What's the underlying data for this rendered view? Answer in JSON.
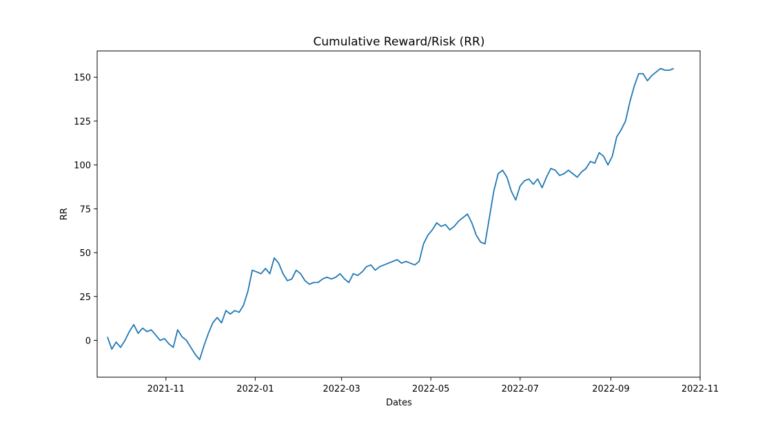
{
  "chart_data": {
    "type": "line",
    "title": "Cumulative Reward/Risk (RR)",
    "xlabel": "Dates",
    "ylabel": "RR",
    "x_ticks": [
      "2021-11",
      "2022-01",
      "2022-03",
      "2022-05",
      "2022-07",
      "2022-09",
      "2022-11"
    ],
    "y_ticks": [
      0,
      25,
      50,
      75,
      100,
      125,
      150
    ],
    "xlim": [
      "2021-09-15",
      "2022-11-01"
    ],
    "ylim": [
      -21,
      165
    ],
    "grid": false,
    "line_color": "#1f77b4",
    "series": [
      {
        "x": [
          "2021-09-22",
          "2021-09-25",
          "2021-09-28",
          "2021-10-01",
          "2021-10-04",
          "2021-10-07",
          "2021-10-10",
          "2021-10-13",
          "2021-10-16",
          "2021-10-19",
          "2021-10-22",
          "2021-10-25",
          "2021-10-28",
          "2021-10-31",
          "2021-11-03",
          "2021-11-06",
          "2021-11-09",
          "2021-11-12",
          "2021-11-15",
          "2021-11-18",
          "2021-11-21",
          "2021-11-24",
          "2021-11-27",
          "2021-11-30",
          "2021-12-03",
          "2021-12-06",
          "2021-12-09",
          "2021-12-12",
          "2021-12-15",
          "2021-12-18",
          "2021-12-21",
          "2021-12-24",
          "2021-12-27",
          "2021-12-30",
          "2022-01-02",
          "2022-01-05",
          "2022-01-08",
          "2022-01-11",
          "2022-01-14",
          "2022-01-17",
          "2022-01-20",
          "2022-01-23",
          "2022-01-26",
          "2022-01-29",
          "2022-02-01",
          "2022-02-04",
          "2022-02-07",
          "2022-02-10",
          "2022-02-13",
          "2022-02-16",
          "2022-02-19",
          "2022-02-22",
          "2022-02-25",
          "2022-02-28",
          "2022-03-03",
          "2022-03-06",
          "2022-03-09",
          "2022-03-12",
          "2022-03-15",
          "2022-03-18",
          "2022-03-21",
          "2022-03-24",
          "2022-03-27",
          "2022-03-30",
          "2022-04-02",
          "2022-04-05",
          "2022-04-08",
          "2022-04-11",
          "2022-04-14",
          "2022-04-17",
          "2022-04-20",
          "2022-04-23",
          "2022-04-26",
          "2022-04-29",
          "2022-05-02",
          "2022-05-05",
          "2022-05-08",
          "2022-05-11",
          "2022-05-14",
          "2022-05-17",
          "2022-05-20",
          "2022-05-23",
          "2022-05-26",
          "2022-05-29",
          "2022-06-01",
          "2022-06-04",
          "2022-06-07",
          "2022-06-10",
          "2022-06-13",
          "2022-06-16",
          "2022-06-19",
          "2022-06-22",
          "2022-06-25",
          "2022-06-28",
          "2022-07-01",
          "2022-07-04",
          "2022-07-07",
          "2022-07-10",
          "2022-07-13",
          "2022-07-16",
          "2022-07-19",
          "2022-07-22",
          "2022-07-25",
          "2022-07-28",
          "2022-07-31",
          "2022-08-03",
          "2022-08-06",
          "2022-08-09",
          "2022-08-12",
          "2022-08-15",
          "2022-08-18",
          "2022-08-21",
          "2022-08-24",
          "2022-08-27",
          "2022-08-30",
          "2022-09-02",
          "2022-09-05",
          "2022-09-08",
          "2022-09-11",
          "2022-09-14",
          "2022-09-17",
          "2022-09-20",
          "2022-09-23",
          "2022-09-26",
          "2022-09-29",
          "2022-10-02",
          "2022-10-05",
          "2022-10-08",
          "2022-10-11",
          "2022-10-14"
        ],
        "values": [
          2,
          -5,
          -1,
          -4,
          0,
          5,
          9,
          4,
          7,
          5,
          6,
          3,
          0,
          1,
          -2,
          -4,
          6,
          2,
          0,
          -4,
          -8,
          -11,
          -3,
          4,
          10,
          13,
          10,
          17,
          15,
          17,
          16,
          20,
          28,
          40,
          39,
          38,
          41,
          38,
          47,
          44,
          38,
          34,
          35,
          40,
          38,
          34,
          32,
          33,
          33,
          35,
          36,
          35,
          36,
          38,
          35,
          33,
          38,
          37,
          39,
          42,
          43,
          40,
          42,
          43,
          44,
          45,
          46,
          44,
          45,
          44,
          43,
          45,
          55,
          60,
          63,
          67,
          65,
          66,
          63,
          65,
          68,
          70,
          72,
          67,
          60,
          56,
          55,
          70,
          85,
          95,
          97,
          93,
          85,
          80,
          88,
          91,
          92,
          89,
          92,
          87,
          93,
          98,
          97,
          94,
          95,
          97,
          95,
          93,
          96,
          98,
          102,
          101,
          107,
          105,
          100,
          105,
          116,
          120,
          125,
          136,
          145,
          152,
          152,
          148,
          151,
          153,
          155,
          154,
          154,
          155
        ]
      }
    ]
  }
}
